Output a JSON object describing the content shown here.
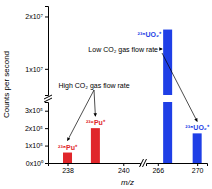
{
  "chart_data": {
    "type": "bar",
    "x_label": "m/z",
    "y_label": "Counts per second",
    "x": [
      238,
      239,
      267,
      270
    ],
    "values": [
      60000,
      200000,
      17500000,
      170000
    ],
    "bar_labels": [
      "²³⁸Pu⁺",
      "²³⁹Pu⁺",
      "²³⁵UO₂⁺",
      "²³⁸UO₂⁺"
    ],
    "colors": [
      "#e0262b",
      "#e0262b",
      "#1f3fe6",
      "#1f3fe6"
    ],
    "xlim": [
      [
        237.3,
        240.6
      ],
      [
        264.8,
        271
      ]
    ],
    "xticks": [
      [
        238,
        240
      ],
      [
        266,
        270
      ]
    ],
    "ylim": [
      [
        0,
        350000
      ],
      [
        5000000,
        22000000
      ]
    ],
    "yticks": [
      [
        {
          "value": 0,
          "label": "0x10⁰"
        },
        {
          "value": 100000,
          "label": "1x10⁵"
        },
        {
          "value": 200000,
          "label": "2x10⁵"
        },
        {
          "value": 300000,
          "label": "3x10⁵"
        }
      ],
      [
        {
          "value": 10000000,
          "label": "1x10⁷"
        },
        {
          "value": 20000000,
          "label": "2x10⁷"
        }
      ]
    ],
    "annotations": [
      {
        "text": "High CO₂ gas flow rate"
      },
      {
        "text": "Low CO₂ gas flow rate"
      }
    ]
  }
}
